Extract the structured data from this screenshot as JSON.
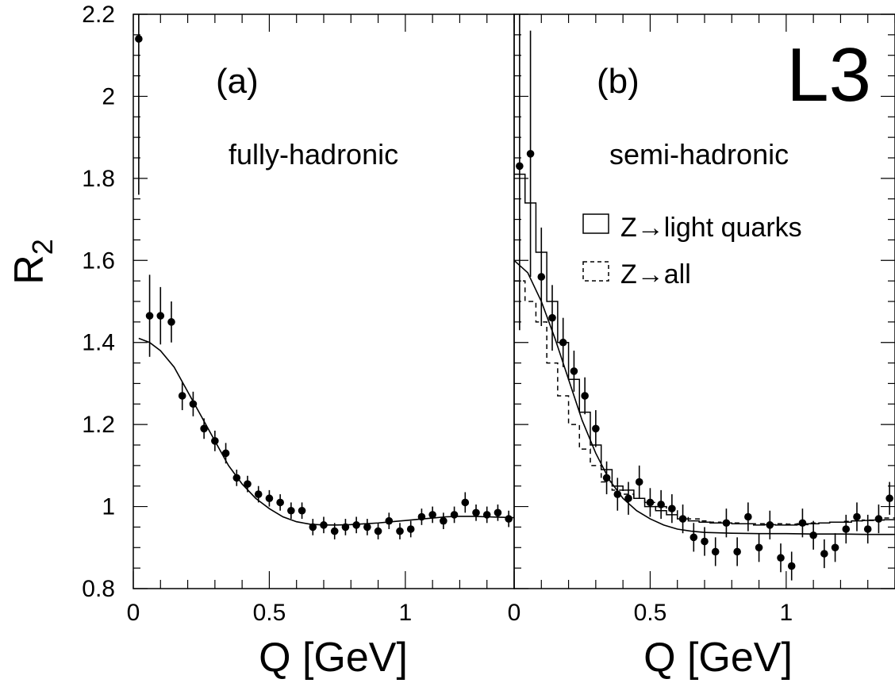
{
  "chart_data": {
    "type": "scatter",
    "ylabel": "R",
    "ylabel_subscript": "2",
    "xlabel": "Q [GeV]",
    "ylim": [
      0.8,
      2.2
    ],
    "yticks": [
      "0.8",
      "1",
      "1.2",
      "1.4",
      "1.6",
      "1.8",
      "2",
      "2.2"
    ],
    "logo": "L3",
    "panels": [
      {
        "tag": "(a)",
        "channel": "fully-hadronic",
        "xlim": [
          0,
          1.4
        ],
        "xticks": [
          "0",
          "0.5",
          "1"
        ],
        "points": {
          "x": [
            0.02,
            0.06,
            0.1,
            0.14,
            0.18,
            0.22,
            0.26,
            0.3,
            0.34,
            0.38,
            0.42,
            0.46,
            0.5,
            0.54,
            0.58,
            0.62,
            0.66,
            0.7,
            0.74,
            0.78,
            0.82,
            0.86,
            0.9,
            0.94,
            0.98,
            1.02,
            1.06,
            1.1,
            1.14,
            1.18,
            1.22,
            1.26,
            1.3,
            1.34,
            1.38
          ],
          "y": [
            2.14,
            1.465,
            1.465,
            1.45,
            1.27,
            1.25,
            1.19,
            1.16,
            1.13,
            1.07,
            1.055,
            1.03,
            1.02,
            1.01,
            0.99,
            0.99,
            0.95,
            0.955,
            0.94,
            0.95,
            0.955,
            0.95,
            0.94,
            0.965,
            0.94,
            0.945,
            0.975,
            0.98,
            0.965,
            0.98,
            1.01,
            0.985,
            0.98,
            0.985,
            0.97
          ],
          "err": [
            0.38,
            0.1,
            0.07,
            0.05,
            0.035,
            0.03,
            0.025,
            0.025,
            0.025,
            0.02,
            0.02,
            0.02,
            0.02,
            0.02,
            0.02,
            0.02,
            0.02,
            0.02,
            0.02,
            0.02,
            0.02,
            0.02,
            0.02,
            0.02,
            0.02,
            0.02,
            0.02,
            0.02,
            0.02,
            0.02,
            0.025,
            0.02,
            0.02,
            0.02,
            0.02
          ]
        },
        "fit": {
          "x": [
            0.02,
            0.06,
            0.1,
            0.15,
            0.2,
            0.25,
            0.3,
            0.35,
            0.4,
            0.45,
            0.5,
            0.55,
            0.6,
            0.65,
            0.7,
            0.75,
            0.8,
            0.85,
            0.9,
            0.95,
            1.0,
            1.05,
            1.1,
            1.15,
            1.2,
            1.25,
            1.3,
            1.35,
            1.4
          ],
          "y": [
            1.41,
            1.4,
            1.38,
            1.34,
            1.28,
            1.22,
            1.16,
            1.1,
            1.055,
            1.02,
            0.995,
            0.975,
            0.963,
            0.957,
            0.955,
            0.955,
            0.956,
            0.958,
            0.96,
            0.963,
            0.966,
            0.969,
            0.972,
            0.975,
            0.976,
            0.976,
            0.975,
            0.974,
            0.973
          ]
        }
      },
      {
        "tag": "(b)",
        "channel": "semi-hadronic",
        "xlim": [
          0,
          1.4
        ],
        "xticks": [
          "0",
          "0.5",
          "1"
        ],
        "points": {
          "x": [
            0.02,
            0.06,
            0.1,
            0.14,
            0.18,
            0.22,
            0.26,
            0.3,
            0.34,
            0.38,
            0.42,
            0.46,
            0.5,
            0.54,
            0.58,
            0.62,
            0.66,
            0.7,
            0.74,
            0.78,
            0.82,
            0.86,
            0.9,
            0.94,
            0.98,
            1.02,
            1.06,
            1.1,
            1.14,
            1.18,
            1.22,
            1.26,
            1.3,
            1.34,
            1.38
          ],
          "y": [
            1.83,
            1.86,
            1.56,
            1.46,
            1.4,
            1.33,
            1.27,
            1.19,
            1.07,
            1.03,
            1.02,
            1.06,
            1.01,
            1.005,
            0.995,
            0.97,
            0.925,
            0.915,
            0.89,
            0.96,
            0.89,
            0.975,
            0.9,
            0.955,
            0.875,
            0.855,
            0.96,
            0.93,
            0.885,
            0.9,
            0.945,
            0.975,
            0.945,
            0.97,
            1.02
          ],
          "err": [
            0.4,
            0.3,
            0.12,
            0.08,
            0.06,
            0.05,
            0.045,
            0.045,
            0.04,
            0.04,
            0.04,
            0.04,
            0.035,
            0.035,
            0.035,
            0.035,
            0.035,
            0.035,
            0.035,
            0.035,
            0.035,
            0.035,
            0.035,
            0.035,
            0.035,
            0.035,
            0.035,
            0.035,
            0.035,
            0.035,
            0.035,
            0.035,
            0.035,
            0.035,
            0.04
          ]
        },
        "fit": {
          "x": [
            0.0,
            0.05,
            0.1,
            0.15,
            0.2,
            0.25,
            0.3,
            0.35,
            0.4,
            0.45,
            0.5,
            0.55,
            0.6,
            0.65,
            0.7,
            0.8,
            0.9,
            1.0,
            1.1,
            1.2,
            1.3,
            1.4
          ],
          "y": [
            1.6,
            1.57,
            1.5,
            1.41,
            1.31,
            1.21,
            1.13,
            1.065,
            1.02,
            0.99,
            0.97,
            0.955,
            0.945,
            0.94,
            0.937,
            0.935,
            0.934,
            0.934,
            0.933,
            0.933,
            0.932,
            0.932
          ]
        },
        "series": [
          {
            "name": "Z→light quarks",
            "style": "solid",
            "edges": [
              0,
              0.04,
              0.08,
              0.12,
              0.16,
              0.2,
              0.24,
              0.28,
              0.32,
              0.36,
              0.4,
              0.44,
              0.48,
              0.52,
              0.56,
              0.6,
              0.64,
              0.68,
              0.72,
              0.76,
              0.8,
              0.84,
              0.88,
              0.92,
              0.96,
              1.0,
              1.04,
              1.08,
              1.12,
              1.16,
              1.2,
              1.24,
              1.28,
              1.32,
              1.36,
              1.4
            ],
            "values": [
              1.81,
              1.74,
              1.62,
              1.5,
              1.4,
              1.31,
              1.23,
              1.15,
              1.09,
              1.05,
              1.04,
              1.02,
              1.0,
              0.99,
              0.98,
              0.97,
              0.965,
              0.962,
              0.96,
              0.96,
              0.958,
              0.958,
              0.955,
              0.956,
              0.955,
              0.955,
              0.956,
              0.958,
              0.96,
              0.962,
              0.962,
              0.965,
              0.966,
              0.967,
              0.968
            ]
          },
          {
            "name": "Z→all",
            "style": "dashed",
            "edges": [
              0,
              0.04,
              0.08,
              0.12,
              0.16,
              0.2,
              0.24,
              0.28,
              0.32,
              0.36,
              0.4,
              0.44,
              0.48,
              0.52,
              0.56,
              0.6,
              0.64,
              0.68,
              0.72,
              0.76,
              0.8,
              0.84,
              0.88,
              0.92,
              0.96,
              1.0,
              1.04,
              1.08,
              1.12,
              1.16,
              1.2,
              1.24,
              1.28,
              1.32,
              1.36,
              1.4
            ],
            "values": [
              1.55,
              1.5,
              1.45,
              1.35,
              1.27,
              1.2,
              1.14,
              1.1,
              1.06,
              1.04,
              1.03,
              1.02,
              1.01,
              1.0,
              0.99,
              0.975,
              0.97,
              0.965,
              0.962,
              0.96,
              0.96,
              0.958,
              0.958,
              0.958,
              0.958,
              0.957,
              0.958,
              0.96,
              0.96,
              0.962,
              0.964,
              0.965,
              0.967,
              0.97,
              0.972
            ]
          }
        ]
      }
    ]
  }
}
